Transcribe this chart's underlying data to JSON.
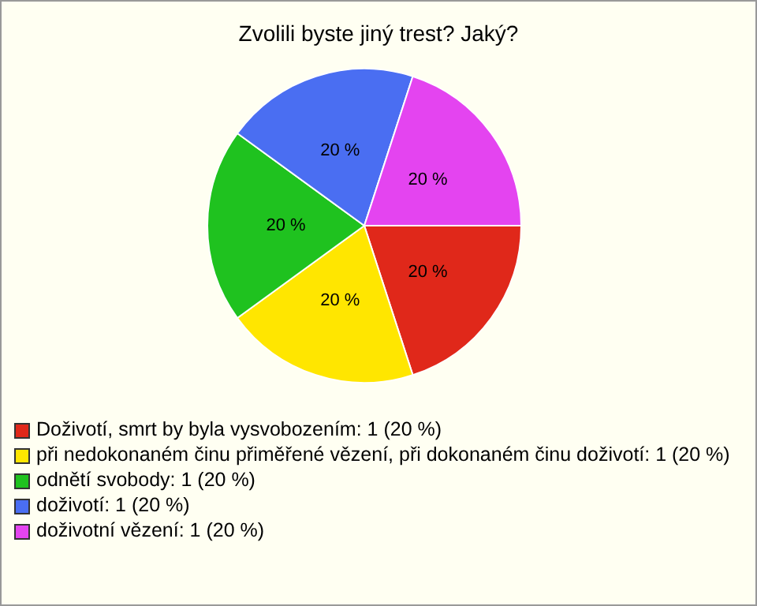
{
  "chart_data": {
    "type": "pie",
    "title": "Zvolili byste jiný trest? Jaký?",
    "categories": [
      "Doživotí, smrt by byla vysvobozením: 1 (20 %)",
      "při nedokonaném činu přiměřené vězení, při dokonaném činu doživotí: 1 (20 %)",
      "odnětí svobody: 1 (20 %)",
      "doživotí: 1 (20 %)",
      "doživotní vězení: 1 (20 %)"
    ],
    "values": [
      20,
      20,
      20,
      20,
      20
    ],
    "value_labels": [
      "20 %",
      "20 %",
      "20 %",
      "20 %",
      "20 %"
    ],
    "colors": [
      "#e0281a",
      "#ffe600",
      "#1fc21f",
      "#4a6ef2",
      "#e444f0"
    ],
    "legend": "bottom"
  }
}
